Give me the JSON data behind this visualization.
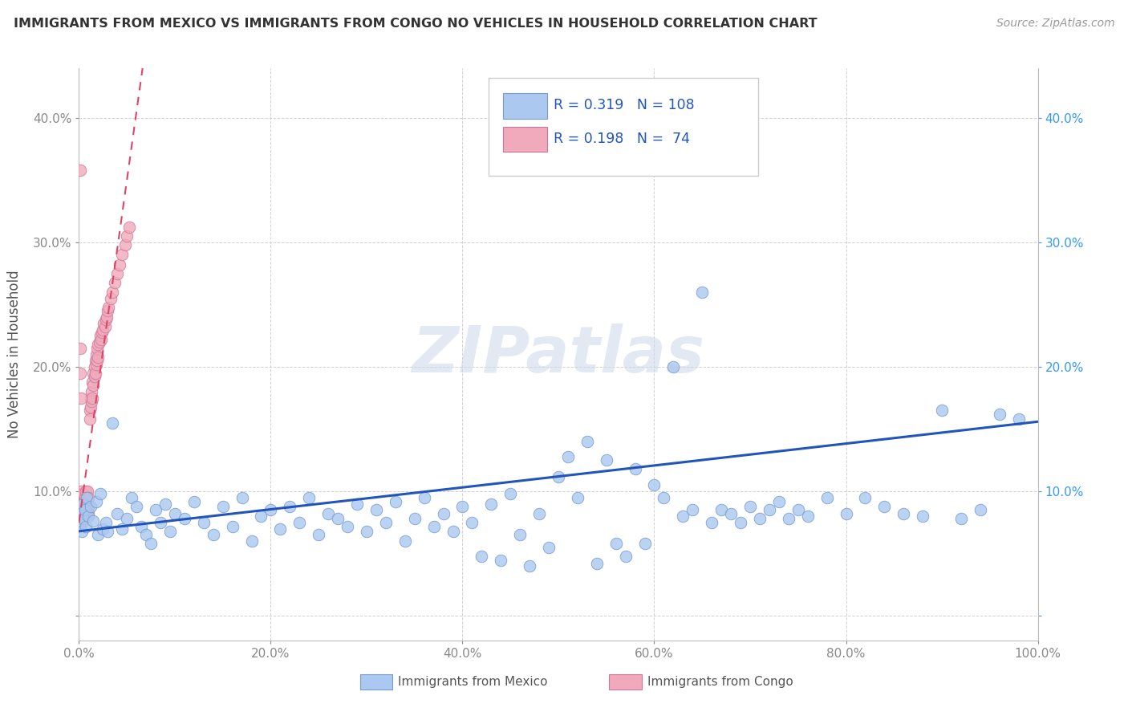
{
  "title": "IMMIGRANTS FROM MEXICO VS IMMIGRANTS FROM CONGO NO VEHICLES IN HOUSEHOLD CORRELATION CHART",
  "source": "Source: ZipAtlas.com",
  "ylabel": "No Vehicles in Household",
  "xlim": [
    0.0,
    1.0
  ],
  "ylim": [
    -0.02,
    0.44
  ],
  "xticks": [
    0.0,
    0.2,
    0.4,
    0.6,
    0.8,
    1.0
  ],
  "xticklabels": [
    "0.0%",
    "20.0%",
    "40.0%",
    "60.0%",
    "80.0%",
    "100.0%"
  ],
  "yticks": [
    0.0,
    0.1,
    0.2,
    0.3,
    0.4
  ],
  "yticklabels_left": [
    "",
    "10.0%",
    "20.0%",
    "30.0%",
    "40.0%"
  ],
  "yticklabels_right": [
    "",
    "10.0%",
    "20.0%",
    "30.0%",
    "40.0%"
  ],
  "mexico_color": "#aac8f0",
  "congo_color": "#f0aabb",
  "mexico_edge": "#7799cc",
  "congo_edge": "#cc7799",
  "trend_mexico_color": "#2255bb",
  "trend_congo_color": "#dd4466",
  "R_mexico": 0.319,
  "N_mexico": 108,
  "R_congo": 0.198,
  "N_congo": 74,
  "watermark_text": "ZIPatlas",
  "background_color": "#ffffff",
  "grid_color": "#cccccc",
  "mexico_x": [
    0.001,
    0.002,
    0.003,
    0.004,
    0.005,
    0.006,
    0.007,
    0.008,
    0.01,
    0.012,
    0.015,
    0.018,
    0.02,
    0.022,
    0.025,
    0.028,
    0.03,
    0.035,
    0.04,
    0.045,
    0.05,
    0.055,
    0.06,
    0.065,
    0.07,
    0.075,
    0.08,
    0.085,
    0.09,
    0.095,
    0.1,
    0.11,
    0.12,
    0.13,
    0.14,
    0.15,
    0.16,
    0.17,
    0.18,
    0.19,
    0.2,
    0.21,
    0.22,
    0.23,
    0.24,
    0.25,
    0.26,
    0.27,
    0.28,
    0.29,
    0.3,
    0.31,
    0.32,
    0.33,
    0.34,
    0.35,
    0.36,
    0.37,
    0.38,
    0.39,
    0.4,
    0.41,
    0.42,
    0.43,
    0.44,
    0.45,
    0.46,
    0.47,
    0.48,
    0.49,
    0.5,
    0.51,
    0.52,
    0.53,
    0.54,
    0.55,
    0.56,
    0.57,
    0.58,
    0.59,
    0.6,
    0.61,
    0.62,
    0.63,
    0.64,
    0.65,
    0.66,
    0.67,
    0.68,
    0.69,
    0.7,
    0.71,
    0.72,
    0.73,
    0.74,
    0.75,
    0.76,
    0.78,
    0.8,
    0.82,
    0.84,
    0.86,
    0.88,
    0.9,
    0.92,
    0.94,
    0.96,
    0.98
  ],
  "mexico_y": [
    0.075,
    0.082,
    0.068,
    0.09,
    0.078,
    0.085,
    0.072,
    0.095,
    0.08,
    0.088,
    0.076,
    0.092,
    0.065,
    0.098,
    0.07,
    0.075,
    0.068,
    0.155,
    0.082,
    0.07,
    0.078,
    0.095,
    0.088,
    0.072,
    0.065,
    0.058,
    0.085,
    0.075,
    0.09,
    0.068,
    0.082,
    0.078,
    0.092,
    0.075,
    0.065,
    0.088,
    0.072,
    0.095,
    0.06,
    0.08,
    0.085,
    0.07,
    0.088,
    0.075,
    0.095,
    0.065,
    0.082,
    0.078,
    0.072,
    0.09,
    0.068,
    0.085,
    0.075,
    0.092,
    0.06,
    0.078,
    0.095,
    0.072,
    0.082,
    0.068,
    0.088,
    0.075,
    0.048,
    0.09,
    0.045,
    0.098,
    0.065,
    0.04,
    0.082,
    0.055,
    0.112,
    0.128,
    0.095,
    0.14,
    0.042,
    0.125,
    0.058,
    0.048,
    0.118,
    0.058,
    0.105,
    0.095,
    0.2,
    0.08,
    0.085,
    0.26,
    0.075,
    0.085,
    0.082,
    0.075,
    0.088,
    0.078,
    0.085,
    0.092,
    0.078,
    0.085,
    0.08,
    0.095,
    0.082,
    0.095,
    0.088,
    0.082,
    0.08,
    0.165,
    0.078,
    0.085,
    0.162,
    0.158
  ],
  "congo_x": [
    0.001,
    0.001,
    0.001,
    0.002,
    0.002,
    0.002,
    0.003,
    0.003,
    0.003,
    0.004,
    0.004,
    0.004,
    0.005,
    0.005,
    0.005,
    0.006,
    0.006,
    0.006,
    0.007,
    0.007,
    0.007,
    0.008,
    0.008,
    0.008,
    0.009,
    0.009,
    0.009,
    0.01,
    0.01,
    0.01,
    0.011,
    0.011,
    0.012,
    0.012,
    0.013,
    0.013,
    0.014,
    0.014,
    0.015,
    0.015,
    0.016,
    0.016,
    0.017,
    0.017,
    0.018,
    0.018,
    0.019,
    0.019,
    0.02,
    0.02,
    0.021,
    0.022,
    0.023,
    0.024,
    0.025,
    0.026,
    0.027,
    0.028,
    0.029,
    0.03,
    0.031,
    0.033,
    0.035,
    0.037,
    0.04,
    0.042,
    0.045,
    0.048,
    0.05,
    0.052,
    0.001,
    0.002,
    0.001,
    0.001
  ],
  "congo_y": [
    0.088,
    0.092,
    0.078,
    0.095,
    0.085,
    0.1,
    0.082,
    0.09,
    0.075,
    0.098,
    0.088,
    0.082,
    0.092,
    0.085,
    0.078,
    0.095,
    0.088,
    0.082,
    0.1,
    0.09,
    0.082,
    0.095,
    0.088,
    0.082,
    0.1,
    0.092,
    0.085,
    0.095,
    0.088,
    0.082,
    0.165,
    0.158,
    0.175,
    0.168,
    0.18,
    0.172,
    0.188,
    0.175,
    0.195,
    0.185,
    0.2,
    0.192,
    0.205,
    0.195,
    0.21,
    0.202,
    0.215,
    0.205,
    0.218,
    0.208,
    0.22,
    0.225,
    0.222,
    0.228,
    0.23,
    0.235,
    0.232,
    0.238,
    0.24,
    0.245,
    0.248,
    0.255,
    0.26,
    0.268,
    0.275,
    0.282,
    0.29,
    0.298,
    0.305,
    0.312,
    0.358,
    0.175,
    0.215,
    0.195
  ],
  "legend_R_color": "#2255bb",
  "legend_N_color": "#dd4422",
  "bottom_legend_label1": "Immigrants from Mexico",
  "bottom_legend_label2": "Immigrants from Congo"
}
